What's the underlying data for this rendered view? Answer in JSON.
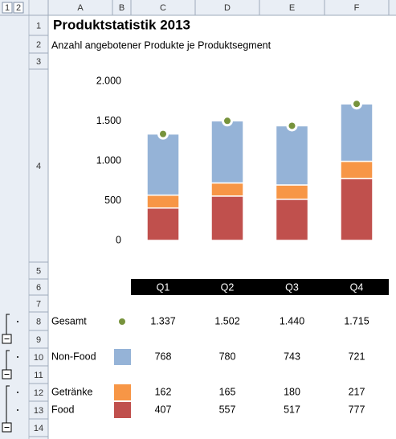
{
  "sheet": {
    "outline_levels": [
      "1",
      "2"
    ],
    "columns": [
      "A",
      "B",
      "C",
      "D",
      "E",
      "F"
    ],
    "rows": [
      "1",
      "2",
      "3",
      "4",
      "5",
      "6",
      "7",
      "8",
      "9",
      "10",
      "11",
      "12",
      "13",
      "14"
    ]
  },
  "chart_data": {
    "type": "bar",
    "stacked": true,
    "title": "Produktstatistik 2013",
    "subtitle": "Anzahl angebotener Produkte je Produktsegment",
    "categories": [
      "Q1",
      "Q2",
      "Q3",
      "Q4"
    ],
    "ylim": [
      0,
      2000
    ],
    "yticks": [
      0,
      500,
      {
        "value": 1000,
        "label": "1.000"
      },
      {
        "value": 1500,
        "label": "1.500"
      },
      {
        "value": 2000,
        "label": "2.000"
      }
    ],
    "series": [
      {
        "name": "Gesamt",
        "type": "scatter",
        "color": "#77933c",
        "values": [
          1337,
          1502,
          1440,
          1715
        ],
        "value_labels": [
          "1.337",
          "1.502",
          "1.440",
          "1.715"
        ]
      },
      {
        "name": "Non-Food",
        "color": "#95b3d7",
        "values": [
          768,
          780,
          743,
          721
        ]
      },
      {
        "name": "Getränke",
        "color": "#f79646",
        "values": [
          162,
          165,
          180,
          217
        ]
      },
      {
        "name": "Food",
        "color": "#c0504d",
        "values": [
          407,
          557,
          517,
          777
        ]
      }
    ]
  }
}
